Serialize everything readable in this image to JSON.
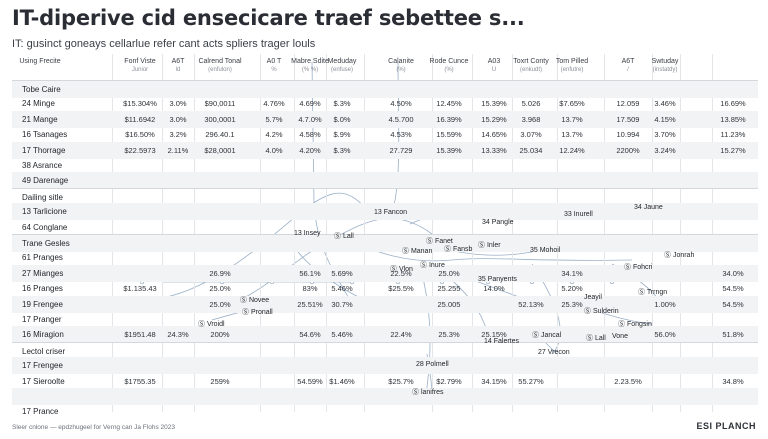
{
  "title": "IT-diperive cid ensecicare traef sebettee s...",
  "subtitle": "IT: gusinct goneays cellarlue refer cant acts spliers trager louls",
  "columns": [
    {
      "label": "Using Frecite",
      "sub": ""
    },
    {
      "label": "Fonf Viste",
      "sub": "Junior"
    },
    {
      "label": "A6T",
      "sub": "ld"
    },
    {
      "label": "Calrend Tonal",
      "sub": "(enfulon)"
    },
    {
      "label": "A0 T",
      "sub": "%"
    },
    {
      "label": "Mabre Sdite",
      "sub": "(%   %)"
    },
    {
      "label": "Meduday",
      "sub": "(enfuse)"
    },
    {
      "label": "Calanite",
      "sub": "(%)"
    },
    {
      "label": "Rode Cunce",
      "sub": "(%)"
    },
    {
      "label": "A03",
      "sub": "U"
    },
    {
      "label": "Toxrt Conty",
      "sub": "(enkudt)"
    },
    {
      "label": "Tom Pilled",
      "sub": "(enfutre)"
    },
    {
      "label": "A6T",
      "sub": "/"
    },
    {
      "label": "Swtuday",
      "sub": "(instatdy)"
    }
  ],
  "rows": [
    {
      "label": "Tobe Caire",
      "section": true,
      "cells": []
    },
    {
      "label": "24  Minge",
      "cells": [
        "$15.304%",
        "3.0%",
        "$90,0011",
        "4.76%",
        "4.69%",
        "$.3%",
        "4.50%",
        "12.45%",
        "15.39%",
        "5.026",
        "$7.65%",
        "12.059",
        "3.46%",
        "16.69%"
      ]
    },
    {
      "label": "21  Mange",
      "cells": [
        "$11.6942",
        "3.0%",
        "300,0001",
        "5.7%",
        "4.7.0%",
        "$.0%",
        "4.5.700",
        "16.39%",
        "15.29%",
        "3.968",
        "13.7%",
        "17.509",
        "4.15%",
        "13.85%"
      ]
    },
    {
      "label": "16  Tsanages",
      "cells": [
        "$16.50%",
        "3.2%",
        "296.40.1",
        "4.2%",
        "4.58%",
        "$.9%",
        "4.53%",
        "15.59%",
        "14.65%",
        "3.07%",
        "13.7%",
        "10.994",
        "3.70%",
        "11.23%"
      ]
    },
    {
      "label": "17  Thorrage",
      "cells": [
        "$22.5973",
        "2.11%",
        "$28,0001",
        "4.0%",
        "4.20%",
        "$.3%",
        "27.729",
        "15.39%",
        "13.33%",
        "25.034",
        "12.24%",
        "2200%",
        "3.24%",
        "15.27%"
      ]
    },
    {
      "label": "38  Asrance",
      "cells": []
    },
    {
      "label": "49  Darenage",
      "cells": []
    },
    {
      "label": "Dailing sitle",
      "section": true,
      "cells": []
    },
    {
      "label": "13  Tarlicione",
      "cells": []
    },
    {
      "label": "64  Conglane",
      "cells": []
    },
    {
      "label": "Trane Gesles",
      "section": true,
      "cells": []
    },
    {
      "label": "61  Pranges",
      "cells": []
    },
    {
      "label": "27  Mianges",
      "cells": [
        "",
        "",
        "26.9%",
        "",
        "56.1%",
        "5.69%",
        "22.5%",
        "25.0%",
        "",
        "",
        "34.1%",
        "",
        "",
        "34.0%"
      ]
    },
    {
      "label": "16  Pranges",
      "cells": [
        "$1.135.43",
        "",
        "25.0%",
        "",
        "83%",
        "5.46%",
        "$25.5%",
        "25.255",
        "14.0%",
        "",
        "5.20%",
        "",
        "",
        "54.5%"
      ]
    },
    {
      "label": "19  Frengee",
      "cells": [
        "",
        "",
        "25.0%",
        "",
        "25.51%",
        "30.7%",
        "",
        "25.005",
        "",
        "52.13%",
        "25.3%",
        "",
        "1.00%",
        "54.5%"
      ]
    },
    {
      "label": "17  Pranger",
      "cells": []
    },
    {
      "label": "16  Miragion",
      "cells": [
        "$1951.48",
        "24.3%",
        "200%",
        "",
        "54.6%",
        "5.46%",
        "22.4%",
        "25.3%",
        "25.15%",
        "",
        "",
        "",
        "56.0%",
        "51.8%"
      ]
    },
    {
      "label": "Lectol criser",
      "section": true,
      "cells": []
    },
    {
      "label": "17  Frengee",
      "cells": []
    },
    {
      "label": "17  Sieroolte",
      "cells": [
        "$1755.35",
        "",
        "259%",
        "",
        "54.59%",
        "$1.46%",
        "$25.7%",
        "$2.79%",
        "34.15%",
        "55.27%",
        "",
        "2.23.5%",
        "",
        "34.8%"
      ]
    },
    {
      "label": "",
      "cells": []
    },
    {
      "label": "17  Prance",
      "cells": []
    }
  ],
  "annotations": [
    {
      "id": "a1",
      "text": "13 Fancon"
    },
    {
      "id": "a2",
      "text": "34 Pangle"
    },
    {
      "id": "a3",
      "text": "33 Inurell"
    },
    {
      "id": "a4",
      "text": "34 Jaune"
    },
    {
      "id": "a5",
      "text": "13 Insey"
    },
    {
      "id": "a6",
      "text": "Ⓢ Lall"
    },
    {
      "id": "a7",
      "text": "Ⓢ Fanet"
    },
    {
      "id": "a8",
      "text": "Ⓢ Manan"
    },
    {
      "id": "a9",
      "text": "Ⓢ Fansb"
    },
    {
      "id": "a10",
      "text": "Ⓢ Inler"
    },
    {
      "id": "a11",
      "text": "35 Mohoil"
    },
    {
      "id": "a12",
      "text": "Ⓢ Jonrah"
    },
    {
      "id": "a13",
      "text": "Ⓢ Vlon"
    },
    {
      "id": "a14",
      "text": "Ⓢ Inure"
    },
    {
      "id": "a15",
      "text": "Ⓢ Fohcri"
    },
    {
      "id": "a16",
      "text": "35 Panyents"
    },
    {
      "id": "a17",
      "text": "Jeayil"
    },
    {
      "id": "a18",
      "text": "Ⓢ Trrngn"
    },
    {
      "id": "a19",
      "text": "Ⓢ Novee"
    },
    {
      "id": "a20",
      "text": "Ⓢ Pronall"
    },
    {
      "id": "a21",
      "text": "Ⓢ Sulderin"
    },
    {
      "id": "a22",
      "text": "Ⓢ Fongsin"
    },
    {
      "id": "a23",
      "text": "Ⓢ Vroidl"
    },
    {
      "id": "a24",
      "text": "14 Falertes"
    },
    {
      "id": "a25",
      "text": "Ⓢ Jancal"
    },
    {
      "id": "a26",
      "text": "Ⓢ Lall"
    },
    {
      "id": "a27",
      "text": "Vone"
    },
    {
      "id": "a28",
      "text": "27 Vrecon"
    },
    {
      "id": "a29",
      "text": "28 Polmell"
    },
    {
      "id": "a30",
      "text": "Ⓢ lanifres"
    }
  ],
  "footer": {
    "left": "Sleer cnlone — epdzhugeel for Verng can Ja Flohs 2023",
    "right": "ESI PLANCH"
  }
}
